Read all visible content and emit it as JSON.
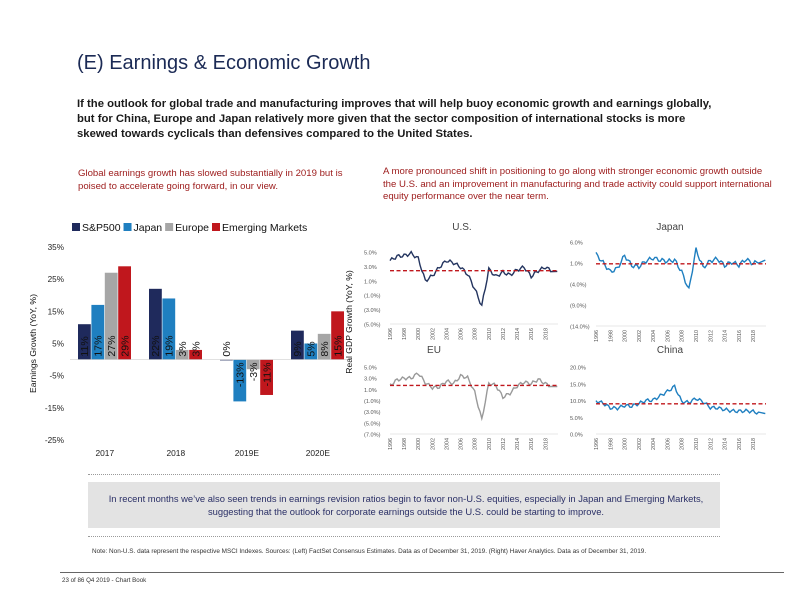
{
  "page": {
    "title": "(E) Earnings & Economic Growth",
    "intro": "If the outlook for global trade and manufacturing improves that will help buoy economic growth and earnings globally, but for China, Europe and Japan relatively more given that the sector composition of international stocks is more skewed towards cyclicals than defensives compared to the United States.",
    "left_subtitle": "Global earnings growth has slowed substantially in 2019 but is poised to accelerate going forward, in our view.",
    "right_subtitle": "A more pronounced shift in positioning to go along with stronger economic growth outside the U.S. and an improvement in manufacturing and trade activity could support international equity performance over the near term.",
    "bottom_text": "In recent months we’ve also seen trends in earnings revision ratios begin to favor non-U.S. equities, especially in Japan and Emerging Markets, suggesting that the outlook for corporate earnings outside the U.S. could be starting to improve.",
    "note": "Note: Non-U.S. data represent the respective MSCI Indexes. Sources: (Left) FactSet Consensus Estimates. Data as of December 31, 2019. (Right) Haver Analytics. Data as of December 31, 2019.",
    "footer": "23 of 86 Q4 2019 - Chart Book"
  },
  "colors": {
    "sp500": "#1f2a5c",
    "japan": "#1f7fc0",
    "europe": "#a6a6a6",
    "em": "#c0171d",
    "line": "#23345f",
    "baseline": "#c0171d"
  },
  "chart_data": [
    {
      "type": "bar",
      "title": "",
      "ylabel": "Earnings Growth (YoY, %)",
      "xlabel": "",
      "ylim": [
        -25,
        35
      ],
      "yticks": [
        35,
        25,
        15,
        5,
        -5,
        -15,
        -25
      ],
      "ytick_labels": [
        "35%",
        "25%",
        "15%",
        "5%",
        "-5%",
        "-15%",
        "-25%"
      ],
      "categories": [
        "2017",
        "2018",
        "2019E",
        "2020E"
      ],
      "legend_position": "top-left",
      "series": [
        {
          "name": "S&P500",
          "values": [
            11,
            22,
            0,
            9
          ],
          "labels": [
            "11%",
            "22%",
            "0%",
            "9%"
          ]
        },
        {
          "name": "Japan",
          "values": [
            17,
            19,
            -13,
            5
          ],
          "labels": [
            "17%",
            "19%",
            "-13%",
            "5%"
          ]
        },
        {
          "name": "Europe",
          "values": [
            27,
            3,
            -3,
            8
          ],
          "labels": [
            "27%",
            "3%",
            "-3%",
            "8%"
          ]
        },
        {
          "name": "Emerging Markets",
          "values": [
            29,
            3,
            -11,
            15
          ],
          "labels": [
            "29%",
            "3%",
            "-11%",
            "15%"
          ]
        }
      ]
    },
    {
      "type": "line",
      "title": "U.S.",
      "ylabel": "Real GDP Growth (YoY, %)",
      "ylim": [
        -5,
        5
      ],
      "yticks": [
        5,
        3,
        1,
        -1,
        -3,
        -5
      ],
      "ytick_labels": [
        "5.0%",
        "3.0%",
        "1.0%",
        "(1.0%)",
        "(3.0%)",
        "(5.0%)"
      ],
      "x": [
        1996,
        1997,
        1998,
        1999,
        2000,
        2001,
        2002,
        2003,
        2004,
        2005,
        2006,
        2007,
        2008,
        2009,
        2010,
        2011,
        2012,
        2013,
        2014,
        2015,
        2016,
        2017,
        2018,
        2019
      ],
      "values": [
        3.8,
        4.4,
        4.5,
        4.8,
        4.1,
        1.0,
        1.7,
        2.9,
        3.8,
        3.5,
        2.9,
        1.9,
        -0.1,
        -2.5,
        2.6,
        1.6,
        2.2,
        1.8,
        2.5,
        2.9,
        1.6,
        2.4,
        2.9,
        2.3
      ],
      "average": 2.4
    },
    {
      "type": "line",
      "title": "Japan",
      "ylim": [
        -14,
        6
      ],
      "yticks": [
        6,
        1,
        -4,
        -9,
        -14
      ],
      "ytick_labels": [
        "6.0%",
        "1.0%",
        "(4.0%)",
        "(9.0%)",
        "(14.0%)"
      ],
      "x": [
        1996,
        1997,
        1998,
        1999,
        2000,
        2001,
        2002,
        2003,
        2004,
        2005,
        2006,
        2007,
        2008,
        2009,
        2010,
        2011,
        2012,
        2013,
        2014,
        2015,
        2016,
        2017,
        2018,
        2019
      ],
      "values": [
        3.1,
        1.1,
        -1.1,
        -0.3,
        2.8,
        0.4,
        0.1,
        1.5,
        2.2,
        1.7,
        1.4,
        1.7,
        -1.1,
        -5.4,
        4.2,
        -0.1,
        1.5,
        2.0,
        0.4,
        1.2,
        0.5,
        1.9,
        0.8,
        1.7
      ],
      "average": 0.8
    },
    {
      "type": "line",
      "title": "EU",
      "ylim": [
        -7,
        5
      ],
      "yticks": [
        5,
        3,
        1,
        -1,
        -3,
        -5,
        -7
      ],
      "ytick_labels": [
        "5.0%",
        "3.0%",
        "1.0%",
        "(1.0%)",
        "(3.0%)",
        "(5.0%)",
        "(7.0%)"
      ],
      "x": [
        1996,
        1997,
        1998,
        1999,
        2000,
        2001,
        2002,
        2003,
        2004,
        2005,
        2006,
        2007,
        2008,
        2009,
        2010,
        2011,
        2012,
        2013,
        2014,
        2015,
        2016,
        2017,
        2018,
        2019
      ],
      "values": [
        1.7,
        2.7,
        3.0,
        3.0,
        3.9,
        2.2,
        1.3,
        1.4,
        2.5,
        2.0,
        3.4,
        3.1,
        0.5,
        -4.4,
        2.1,
        1.7,
        -0.4,
        0.3,
        1.6,
        2.3,
        2.0,
        2.8,
        2.0,
        1.5
      ],
      "average": 1.7
    },
    {
      "type": "line",
      "title": "China",
      "ylim": [
        0,
        20
      ],
      "yticks": [
        20,
        15,
        10,
        5,
        0
      ],
      "ytick_labels": [
        "20.0%",
        "15.0%",
        "10.0%",
        "5.0%",
        "0.0%"
      ],
      "x": [
        1996,
        1997,
        1998,
        1999,
        2000,
        2001,
        2002,
        2003,
        2004,
        2005,
        2006,
        2007,
        2008,
        2009,
        2010,
        2011,
        2012,
        2013,
        2014,
        2015,
        2016,
        2017,
        2018,
        2019
      ],
      "values": [
        9.9,
        9.2,
        7.8,
        7.7,
        8.5,
        8.3,
        9.1,
        10.0,
        10.1,
        11.4,
        12.7,
        14.2,
        9.7,
        9.4,
        10.6,
        9.6,
        7.9,
        7.8,
        7.3,
        6.9,
        6.8,
        6.9,
        6.7,
        6.1
      ],
      "average": 9.0
    }
  ],
  "x_tick_labels": [
    "1996",
    "1998",
    "2000",
    "2002",
    "2004",
    "2006",
    "2008",
    "2010",
    "2012",
    "2014",
    "2016",
    "2018"
  ]
}
